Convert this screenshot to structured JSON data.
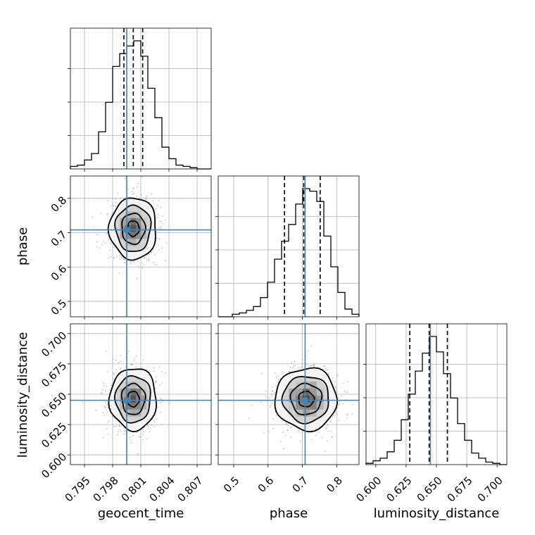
{
  "chart_data": {
    "type": "corner",
    "parameters": [
      "geocent_time",
      "phase",
      "luminosity_distance"
    ],
    "truths": {
      "geocent_time": 0.7995,
      "phase": 0.708,
      "luminosity_distance": 0.645
    },
    "colors": {
      "truth": "#4682b4",
      "hist": "#000000",
      "grid": "#b0b0b0",
      "quantile": "#000000"
    },
    "grid": true,
    "quantiles_note": "dashed lines at 16/50/84 percentiles",
    "ranges": {
      "geocent_time": [
        0.7935,
        0.8085
      ],
      "phase": [
        0.455,
        0.865
      ],
      "luminosity_distance": [
        0.592,
        0.708
      ]
    },
    "ticks": {
      "geocent_time": {
        "values": [
          0.795,
          0.798,
          0.801,
          0.804,
          0.807
        ],
        "labels": [
          "0.795",
          "0.798",
          "0.801",
          "0.804",
          "0.807"
        ]
      },
      "phase": {
        "values": [
          0.5,
          0.6,
          0.7,
          0.8
        ],
        "labels": [
          "0.5",
          "0.6",
          "0.7",
          "0.8"
        ]
      },
      "luminosity_distance": {
        "values": [
          0.6,
          0.625,
          0.65,
          0.675,
          0.7
        ],
        "labels": [
          "0.600",
          "0.625",
          "0.650",
          "0.675",
          "0.700"
        ]
      }
    },
    "marginals": [
      {
        "parameter": "geocent_time",
        "bin_edges": [
          0.7935,
          0.79425,
          0.795,
          0.79575,
          0.7965,
          0.79725,
          0.798,
          0.79875,
          0.7995,
          0.80025,
          0.801,
          0.80175,
          0.8025,
          0.80325,
          0.804,
          0.80475,
          0.8055,
          0.80625,
          0.807,
          0.80775,
          0.8085
        ],
        "counts": [
          0.02,
          0.03,
          0.07,
          0.12,
          0.29,
          0.52,
          0.8,
          0.9,
          0.96,
          1.0,
          0.88,
          0.63,
          0.4,
          0.17,
          0.08,
          0.03,
          0.02,
          0.01,
          0,
          0
        ],
        "quantiles": [
          0.7992,
          0.8002,
          0.8012
        ]
      },
      {
        "parameter": "phase",
        "bin_edges": [
          0.455,
          0.4755,
          0.496,
          0.5165,
          0.537,
          0.5575,
          0.578,
          0.5985,
          0.619,
          0.6395,
          0.66,
          0.6805,
          0.701,
          0.7215,
          0.742,
          0.7625,
          0.783,
          0.8035,
          0.824,
          0.8445,
          0.865
        ],
        "counts": [
          0,
          0,
          0.02,
          0.03,
          0.05,
          0.08,
          0.15,
          0.27,
          0.45,
          0.59,
          0.72,
          0.88,
          1.0,
          0.98,
          0.9,
          0.63,
          0.39,
          0.19,
          0.06,
          0.02
        ],
        "quantiles": [
          0.648,
          0.704,
          0.752
        ]
      },
      {
        "parameter": "luminosity_distance",
        "bin_edges": [
          0.592,
          0.5978,
          0.6036,
          0.6094,
          0.6152,
          0.621,
          0.6268,
          0.6326,
          0.6384,
          0.6442,
          0.65,
          0.6558,
          0.6616,
          0.6674,
          0.6732,
          0.679,
          0.6848,
          0.6906,
          0.6964,
          0.7022,
          0.708
        ],
        "counts": [
          0.01,
          0.03,
          0.05,
          0.1,
          0.19,
          0.35,
          0.55,
          0.73,
          0.87,
          1.0,
          0.88,
          0.71,
          0.52,
          0.32,
          0.19,
          0.09,
          0.05,
          0.02,
          0.01,
          0
        ],
        "quantiles": [
          0.628,
          0.644,
          0.659
        ]
      }
    ],
    "joint": [
      {
        "x": "geocent_time",
        "y": "phase",
        "center": [
          0.8002,
          0.712
        ],
        "sigma": [
          0.00125,
          0.045
        ],
        "contour_levels": [
          0.5,
          1.0,
          1.5,
          2.0
        ]
      },
      {
        "x": "geocent_time",
        "y": "luminosity_distance",
        "center": [
          0.8002,
          0.646
        ],
        "sigma": [
          0.00125,
          0.0128
        ],
        "contour_levels": [
          0.5,
          1.0,
          1.5,
          2.0
        ]
      },
      {
        "x": "phase",
        "y": "luminosity_distance",
        "center": [
          0.711,
          0.646
        ],
        "sigma": [
          0.045,
          0.0128
        ],
        "contour_levels": [
          0.5,
          1.0,
          1.5,
          2.0
        ]
      }
    ],
    "axis_labels": {
      "bottom": [
        "geocent_time",
        "phase",
        "luminosity_distance"
      ],
      "left": [
        "phase",
        "luminosity_distance"
      ]
    }
  }
}
